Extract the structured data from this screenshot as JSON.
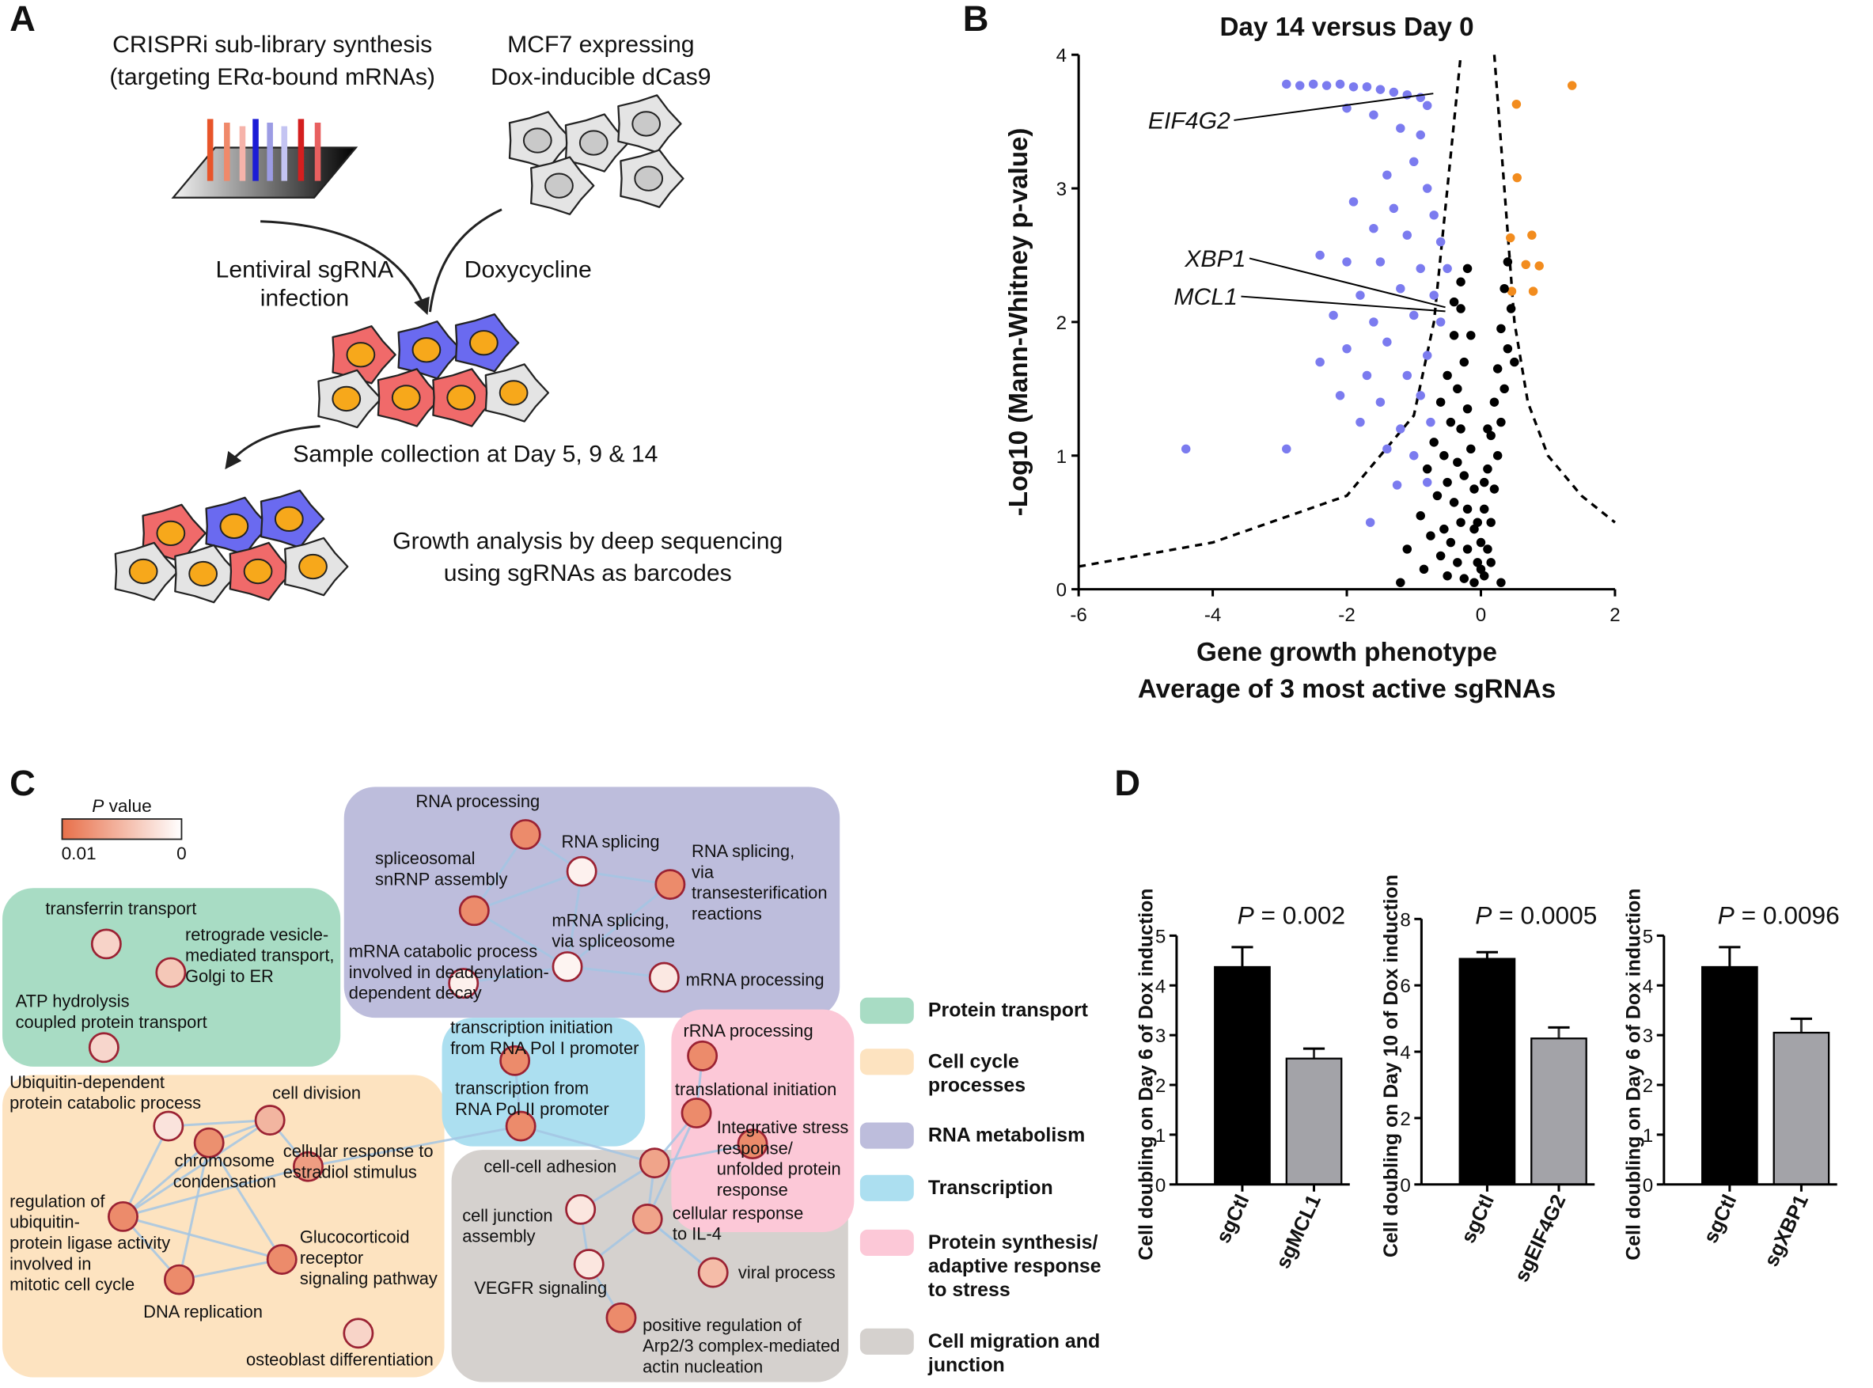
{
  "panel_labels": [
    "A",
    "B",
    "C",
    "D"
  ],
  "panel_a": {
    "library": [
      "CRISPRi sub-library synthesis",
      "(targeting ERα-bound mRNAs)"
    ],
    "cells": [
      "MCF7 expressing",
      "Dox-inducible dCas9"
    ],
    "infection": [
      "Lentiviral sgRNA",
      "infection"
    ],
    "drug": "Doxycycline",
    "collection": "Sample collection at Day 5, 9 & 14",
    "analysis": [
      "Growth analysis by deep sequencing",
      "using sgRNAs as barcodes"
    ]
  },
  "chart_data": [
    {
      "type": "scatter",
      "title": "Day 14 versus Day 0",
      "xlabel": [
        "Gene growth phenotype",
        "Average of 3 most active sgRNAs"
      ],
      "ylabel": "-Log10 (Mann-Whitney p-value)",
      "xlim": [
        -6,
        2
      ],
      "ylim": [
        0,
        4
      ],
      "xticks": [
        -6,
        -4,
        -2,
        0,
        2
      ],
      "yticks": [
        0,
        1,
        2,
        3,
        4
      ],
      "annotations": [
        {
          "text": "EIF4G2",
          "x": -0.71,
          "y": 3.71
        },
        {
          "text": "XBP1",
          "x": -0.53,
          "y": 2.11
        },
        {
          "text": "MCL1",
          "x": -0.53,
          "y": 2.08
        }
      ],
      "series": [
        {
          "color": "#000000",
          "style": "dashed",
          "x": [
            -6,
            -4,
            -2,
            -1,
            -0.7,
            -0.5,
            -0.3
          ],
          "values": [
            0.17,
            0.35,
            0.7,
            1.3,
            2,
            3,
            4
          ]
        },
        {
          "color": "#000000",
          "style": "dashed",
          "x": [
            0.2,
            0.35,
            0.5,
            0.7,
            1,
            1.5,
            2
          ],
          "values": [
            4,
            3,
            2,
            1.4,
            1,
            0.7,
            0.5
          ]
        },
        {
          "color": "#7b7bef",
          "x": [
            -2.9,
            -2.7,
            -2.5,
            -2.3,
            -2.1,
            -1.9,
            -1.7,
            -1.5,
            -1.3,
            -1.1,
            -0.9,
            -0.8,
            -2.0,
            -1.6,
            -1.2,
            -0.9,
            -1.0,
            -1.4,
            -0.8,
            -1.9,
            -1.3,
            -0.7,
            -1.6,
            -1.1,
            -0.6,
            -2.4,
            -2.0,
            -1.5,
            -0.9,
            -0.5,
            -1.8,
            -1.2,
            -0.7,
            -2.2,
            -1.6,
            -1.0,
            -0.6,
            -2.0,
            -1.4,
            -0.8,
            -2.4,
            -1.7,
            -1.1,
            -2.1,
            -1.5,
            -0.9,
            -1.8,
            -1.2,
            -1.4,
            -1.0,
            -4.4,
            -2.9,
            -0.8,
            -1.25,
            -1.65,
            -0.75
          ],
          "values": [
            3.78,
            3.77,
            3.78,
            3.77,
            3.78,
            3.76,
            3.76,
            3.74,
            3.72,
            3.7,
            3.68,
            3.62,
            3.6,
            3.55,
            3.45,
            3.4,
            3.2,
            3.1,
            3.0,
            2.9,
            2.85,
            2.8,
            2.7,
            2.65,
            2.6,
            2.5,
            2.45,
            2.45,
            2.4,
            2.4,
            2.2,
            2.25,
            2.2,
            2.05,
            2.0,
            2.05,
            2.0,
            1.8,
            1.85,
            1.75,
            1.7,
            1.6,
            1.6,
            1.45,
            1.4,
            1.45,
            1.25,
            1.2,
            1.05,
            1.0,
            1.05,
            1.05,
            0.8,
            0.78,
            0.5,
            1.25
          ]
        },
        {
          "color": "#f28c1e",
          "x": [
            1.36,
            0.53,
            0.54,
            0.76,
            0.44,
            0.67,
            0.87,
            0.46,
            0.78
          ],
          "values": [
            3.77,
            3.63,
            3.08,
            2.65,
            2.63,
            2.43,
            2.42,
            2.23,
            2.23
          ]
        },
        {
          "color": "#000000",
          "x": [
            -0.3,
            -0.4,
            -0.25,
            -0.5,
            -0.35,
            -0.6,
            -0.2,
            -0.45,
            -0.3,
            -0.7,
            -0.15,
            -0.55,
            -0.35,
            -0.8,
            -0.25,
            -0.5,
            -0.1,
            -0.65,
            -0.4,
            -0.2,
            -0.9,
            -0.3,
            -0.55,
            -0.1,
            -0.75,
            -0.45,
            -0.2,
            -1.1,
            -0.6,
            -0.35,
            -0.05,
            -0.85,
            -0.5,
            -0.25,
            -1.2,
            -0.1,
            0.05,
            0.1,
            0.15,
            0.05,
            0.2,
            0.1,
            0.25,
            0.15,
            0.3,
            0.2,
            0.35,
            0.25,
            0.4,
            0.3,
            0.45,
            0.35,
            0.4,
            -0.2,
            -0.3,
            0.0,
            -0.05,
            0.0,
            0.15,
            0.3,
            0.5,
            -0.15,
            0.05,
            -0.4,
            0.1
          ],
          "values": [
            2.1,
            1.9,
            1.7,
            1.6,
            1.5,
            1.4,
            1.35,
            1.25,
            1.2,
            1.1,
            1.05,
            1.0,
            0.95,
            0.9,
            0.85,
            0.8,
            0.75,
            0.7,
            0.65,
            0.6,
            0.55,
            0.5,
            0.45,
            0.45,
            0.4,
            0.35,
            0.3,
            0.3,
            0.25,
            0.2,
            0.2,
            0.15,
            0.1,
            0.08,
            0.05,
            0.05,
            0.1,
            0.3,
            0.5,
            0.6,
            0.75,
            0.9,
            1.0,
            1.15,
            1.25,
            1.4,
            1.5,
            1.65,
            1.8,
            1.95,
            2.1,
            2.25,
            2.45,
            2.4,
            2.3,
            0.35,
            0.5,
            0.15,
            0.2,
            0.05,
            1.7,
            1.9,
            0.8,
            2.15,
            1.2
          ]
        }
      ]
    },
    {
      "type": "bar",
      "ylabel": "Cell doubling on Day 6 of Dox induction",
      "categories": [
        "sgCtl",
        "sgMCL1"
      ],
      "values": [
        4.37,
        2.53
      ],
      "errors": [
        0.4,
        0.2
      ],
      "colors": [
        "#000000",
        "#a3a3a8"
      ],
      "ylim": [
        0,
        5
      ],
      "yticks": [
        0,
        1,
        2,
        3,
        4,
        5
      ],
      "annotation": {
        "symbol": "P",
        "text": " = 0.002"
      }
    },
    {
      "type": "bar",
      "ylabel": "Cell doubling on Day 10 of Dox induction",
      "categories": [
        "sgCtl",
        "sgEIF4G2"
      ],
      "values": [
        6.8,
        4.4
      ],
      "errors": [
        0.2,
        0.33
      ],
      "colors": [
        "#000000",
        "#a3a3a8"
      ],
      "ylim": [
        0,
        8
      ],
      "yticks": [
        0,
        2,
        4,
        6,
        8
      ],
      "annotation": {
        "symbol": "P",
        "text": " = 0.0005"
      }
    },
    {
      "type": "bar",
      "ylabel": "Cell doubling on Day 6 of Dox induction",
      "categories": [
        "sgCtl",
        "sgXBP1"
      ],
      "values": [
        4.37,
        3.05
      ],
      "errors": [
        0.4,
        0.28
      ],
      "colors": [
        "#000000",
        "#a3a3a8"
      ],
      "ylim": [
        0,
        5
      ],
      "yticks": [
        0,
        1,
        2,
        3,
        4,
        5
      ],
      "annotation": {
        "symbol": "P",
        "text": " = 0.0096"
      }
    }
  ],
  "panel_c": {
    "colorbar": {
      "symbol": "P",
      "title": " value",
      "min_label": "0.01",
      "max_label": "0",
      "colors": [
        "#e8704a",
        "#ffffff"
      ]
    },
    "groups": [
      {
        "label": [
          "Protein transport"
        ],
        "color": "#a8dcc4"
      },
      {
        "label": [
          "Cell cycle",
          "processes"
        ],
        "color": "#fde3c0"
      },
      {
        "label": [
          "RNA metabolism"
        ],
        "color": "#bdbddc"
      },
      {
        "label": [
          "Transcription"
        ],
        "color": "#acdff0"
      },
      {
        "label": [
          "Protein synthesis/",
          "adaptive response",
          "to stress"
        ],
        "color": "#fcc8d7"
      },
      {
        "label": [
          "Cell migration and",
          "junction"
        ],
        "color": "#d5d1ce"
      }
    ],
    "nodes": [
      {
        "label": [
          "transferrin transport"
        ],
        "color": "#f7d3c8"
      },
      {
        "label": [
          "retrograde vesicle-",
          "mediated transport,",
          "Golgi to ER"
        ],
        "color": "#f5c8b8"
      },
      {
        "label": [
          "ATP hydrolysis",
          "coupled protein transport"
        ],
        "color": "#f7d6cc"
      },
      {
        "label": [
          "Ubiquitin-dependent",
          "protein catabolic process"
        ],
        "color": "#fae3dc"
      },
      {
        "label": [
          "cell division"
        ],
        "color": "#f2b5a0"
      },
      {
        "label": [
          "chromosome",
          "condensation"
        ],
        "color": "#ec906f"
      },
      {
        "label": [
          "cellular response to",
          "estradiol stimulus"
        ],
        "color": "#ee9d82"
      },
      {
        "label": [
          "regulation of",
          "ubiquitin-",
          "protein ligase activity",
          "involved in",
          "mitotic cell cycle"
        ],
        "color": "#ec8b6b"
      },
      {
        "label": [
          "DNA replication"
        ],
        "color": "#ec8b6b"
      },
      {
        "label": [
          "Glucocorticoid",
          "receptor",
          "signaling pathway"
        ],
        "color": "#ec8b6b"
      },
      {
        "label": [
          "osteoblast differentiation"
        ],
        "color": "#f8d4c8"
      },
      {
        "label": [
          "RNA processing"
        ],
        "color": "#ec8b6b"
      },
      {
        "label": [
          "RNA splicing"
        ],
        "color": "#fdf1ee"
      },
      {
        "label": [
          "spliceosomal",
          "snRNP assembly"
        ],
        "color": "#ec8b6b"
      },
      {
        "label": [
          "RNA splicing,",
          "via",
          "transesterification",
          "reactions"
        ],
        "color": "#ec8b6b"
      },
      {
        "label": [
          "mRNA splicing,",
          "via spliceosome"
        ],
        "color": "#fdf4f1"
      },
      {
        "label": [
          "mRNA catabolic process",
          "involved in deadenylation-",
          "dependent decay"
        ],
        "color": "#fdf0ec"
      },
      {
        "label": [
          "mRNA processing"
        ],
        "color": "#fbe8e2"
      },
      {
        "label": [
          "transcription initiation",
          "from RNA Pol I promoter"
        ],
        "color": "#ec8b6b"
      },
      {
        "label": [
          "transcription from",
          "RNA Pol II promoter"
        ],
        "color": "#ec8b6b"
      },
      {
        "label": [
          "rRNA processing"
        ],
        "color": "#ec8b6b"
      },
      {
        "label": [
          "translational initiation"
        ],
        "color": "#ec8b6b"
      },
      {
        "label": [
          "Integrative stress",
          "response/",
          "unfolded protein",
          "response"
        ],
        "color": "#ec8b6b"
      },
      {
        "label": [
          "cell-cell adhesion"
        ],
        "color": "#f0a48a"
      },
      {
        "label": [
          "cell junction",
          "assembly"
        ],
        "color": "#fbe6df"
      },
      {
        "label": [
          "cellular response",
          "to IL-4"
        ],
        "color": "#f0a48a"
      },
      {
        "label": [
          "VEGFR signaling"
        ],
        "color": "#fbe6df"
      },
      {
        "label": [
          "viral process"
        ],
        "color": "#f5bca8"
      },
      {
        "label": [
          "positive regulation of",
          "Arp2/3 complex-mediated",
          "actin nucleation"
        ],
        "color": "#ec8b6b"
      }
    ]
  }
}
